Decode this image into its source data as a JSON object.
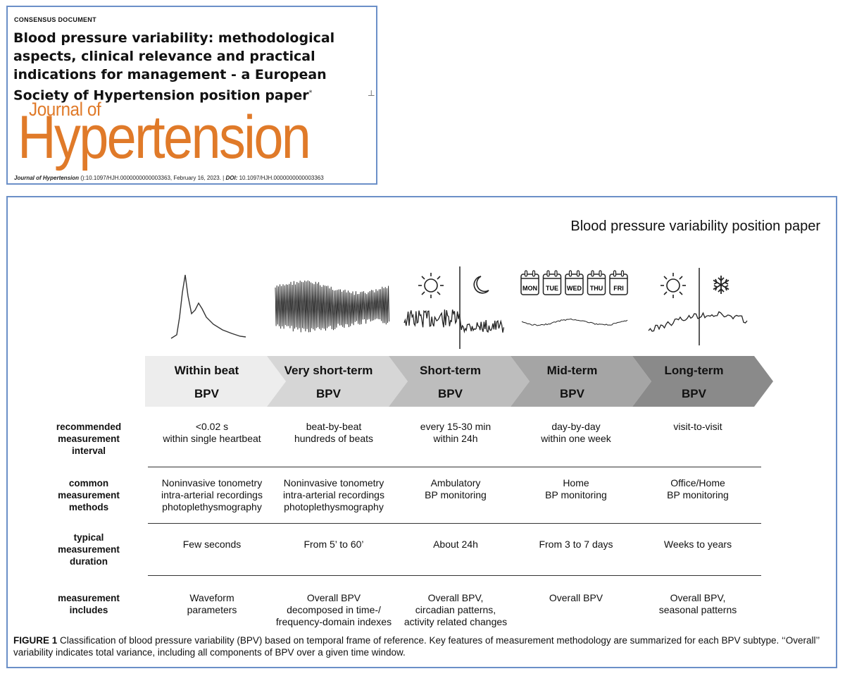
{
  "header": {
    "label": "CONSENSUS DOCUMENT",
    "title": "Blood pressure variability: methodological aspects, clinical relevance and practical indications for management - a European Society of Hypertension position paper",
    "title_mark": "*",
    "journal_line1": "Journal of",
    "journal_line2": "Hypertension",
    "citation_journal": "Journal of Hypertension",
    "citation_rest": " ():10.1097/HJH.0000000000003363, February 16, 2023. | ",
    "citation_doi_label": "DOI:",
    "citation_doi": " 10.1097/HJH.0000000000003363",
    "side_mark": "┴"
  },
  "figure": {
    "running_header": "Blood pressure variability position paper",
    "calendar_days": [
      "MON",
      "TUE",
      "WED",
      "THU",
      "FRI"
    ],
    "stages": [
      {
        "line1": "Within beat",
        "line2": "BPV",
        "fill": "#ededed"
      },
      {
        "line1": "Very short-term",
        "line2": "BPV",
        "fill": "#d6d6d6"
      },
      {
        "line1": "Short-term",
        "line2": "BPV",
        "fill": "#bdbdbd"
      },
      {
        "line1": "Mid-term",
        "line2": "BPV",
        "fill": "#a5a5a5"
      },
      {
        "line1": "Long-term",
        "line2": "BPV",
        "fill": "#8a8a8a"
      }
    ],
    "rows": [
      {
        "label": [
          "recommended",
          "measurement",
          "interval"
        ],
        "cells": [
          [
            "<0.02 s",
            "within single heartbeat"
          ],
          [
            "beat-by-beat",
            "hundreds of beats"
          ],
          [
            "every 15-30 min",
            "within 24h"
          ],
          [
            "day-by-day",
            "within one week"
          ],
          [
            "visit-to-visit"
          ]
        ]
      },
      {
        "label": [
          "common",
          "measurement",
          "methods"
        ],
        "cells": [
          [
            "Noninvasive tonometry",
            "intra-arterial recordings",
            "photoplethysmography"
          ],
          [
            "Noninvasive tonometry",
            "intra-arterial recordings",
            "photoplethysmography"
          ],
          [
            "Ambulatory",
            "BP monitoring"
          ],
          [
            "Home",
            "BP monitoring"
          ],
          [
            "Office/Home",
            "BP monitoring"
          ]
        ]
      },
      {
        "label": [
          "typical",
          "measurement",
          "duration"
        ],
        "cells": [
          [
            "Few seconds"
          ],
          [
            "From 5’ to 60’"
          ],
          [
            "About 24h"
          ],
          [
            "From  3 to 7 days"
          ],
          [
            "Weeks to years"
          ]
        ]
      },
      {
        "label": [
          "measurement",
          "includes"
        ],
        "cells": [
          [
            "Waveform",
            "parameters"
          ],
          [
            "Overall BPV",
            "decomposed in time-/",
            "frequency-domain indexes"
          ],
          [
            "Overall BPV,",
            "circadian patterns,",
            "activity related changes"
          ],
          [
            "Overall BPV"
          ],
          [
            "Overall BPV,",
            "seasonal patterns"
          ]
        ]
      }
    ],
    "caption_label": "FIGURE 1",
    "caption_text": " Classification of blood pressure variability (BPV) based on temporal frame of reference. Key features of measurement methodology are summarized for each BPV subtype. ‘‘Overall’’ variability indicates total variance, including all components of BPV over a given time window."
  }
}
